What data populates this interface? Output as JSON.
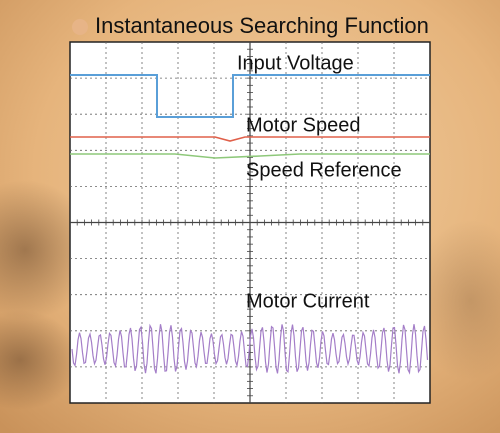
{
  "header": {
    "title": "Instantaneous Searching Function"
  },
  "traces": [
    {
      "label": "Input Voltage"
    },
    {
      "label": "Motor Speed"
    },
    {
      "label": "Speed Reference"
    },
    {
      "label": "Motor Current"
    }
  ]
}
